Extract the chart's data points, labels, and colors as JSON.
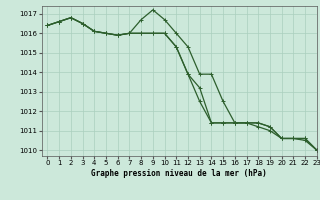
{
  "title": "Graphe pression niveau de la mer (hPa)",
  "background_color": "#cce8da",
  "grid_color": "#aacfbe",
  "line_color": "#2d5f2d",
  "xlim": [
    -0.5,
    23
  ],
  "ylim": [
    1009.7,
    1017.4
  ],
  "yticks": [
    1010,
    1011,
    1012,
    1013,
    1014,
    1015,
    1016,
    1017
  ],
  "xticks": [
    0,
    1,
    2,
    3,
    4,
    5,
    6,
    7,
    8,
    9,
    10,
    11,
    12,
    13,
    14,
    15,
    16,
    17,
    18,
    19,
    20,
    21,
    22,
    23
  ],
  "xtick_labels": [
    "0",
    "1",
    "2",
    "3",
    "4",
    "5",
    "6",
    "7",
    "8",
    "9",
    "10",
    "11",
    "12",
    "13",
    "14",
    "15",
    "16",
    "17",
    "18",
    "19",
    "20",
    "21",
    "22",
    "23"
  ],
  "series": [
    [
      1016.4,
      1016.6,
      1016.8,
      1016.5,
      1016.1,
      1016.0,
      1015.9,
      1016.0,
      1016.0,
      1016.0,
      1016.0,
      1015.3,
      1013.9,
      1012.5,
      1011.4,
      1011.4,
      1011.4,
      1011.4,
      1011.4,
      1011.2,
      1010.6,
      1010.6,
      1010.6,
      1010.0
    ],
    [
      1016.4,
      1016.6,
      1016.8,
      1016.5,
      1016.1,
      1016.0,
      1015.9,
      1016.0,
      1016.7,
      1017.2,
      1016.7,
      1016.0,
      1015.3,
      1013.9,
      1013.9,
      1012.5,
      1011.4,
      1011.4,
      1011.2,
      1011.0,
      1010.6,
      1010.6,
      1010.5,
      1010.0
    ],
    [
      1016.4,
      1016.6,
      1016.8,
      1016.5,
      1016.1,
      1016.0,
      1015.9,
      1016.0,
      1016.0,
      1016.0,
      1016.0,
      1015.3,
      1013.9,
      1013.2,
      1011.4,
      1011.4,
      1011.4,
      1011.4,
      1011.4,
      1011.2,
      1010.6,
      1010.6,
      1010.6,
      1010.0
    ]
  ]
}
